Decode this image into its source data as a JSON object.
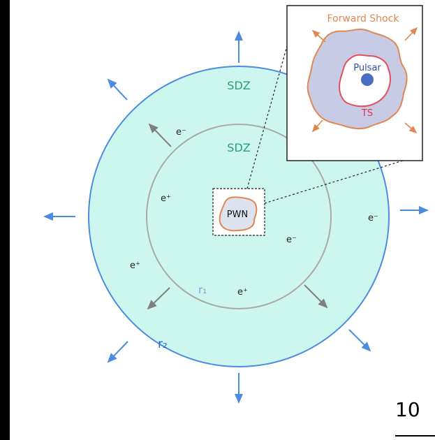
{
  "colors": {
    "page_bg": "#ffffff",
    "frame_bg": "#000000",
    "outer_region_fill": "#cdf7ee",
    "outer_circle_stroke": "#4b8be0",
    "inner_circle_stroke": "#a8a8a8",
    "sdz_text": "#2a9d7a",
    "radius_r1_text": "#8aa0d0",
    "radius_r2_text": "#2e63c8",
    "blue_arrow": "#4b8be0",
    "gray_arrow": "#808080",
    "pwn_fill": "#dde2ef",
    "pwn_outline": "#e08850",
    "inset_shock_fill": "#c8cbe6",
    "inset_shock_stroke": "#e08850",
    "inset_ts_stroke": "#e05060",
    "ts_text": "#e03050",
    "forward_shock_text": "#e08850",
    "pulsar_text": "#2e4fa0",
    "pulsar_dot": "#4b6fc0"
  },
  "diagram": {
    "labels": {
      "sdz_outer": "SDZ",
      "sdz_inner": "SDZ",
      "r1": "r₁",
      "r2": "r₂",
      "pwn": "PWN",
      "electron": "e⁻",
      "positron": "e⁺"
    },
    "inset": {
      "forward_shock": "Forward Shock",
      "pulsar": "Pulsar",
      "ts": "TS"
    }
  },
  "page": {
    "number": "10"
  }
}
